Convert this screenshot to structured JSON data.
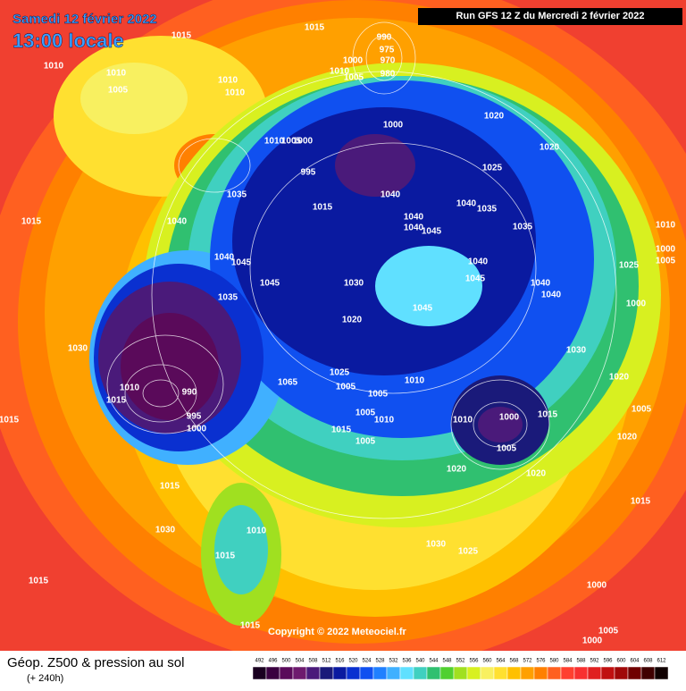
{
  "header": {
    "date": "Samedi 12 février 2022",
    "time": "13:00 locale",
    "run": "Run GFS 12 Z du Mercredi 2 février 2022"
  },
  "footer": {
    "title": "Géop. Z500 & pression au sol",
    "subtitle": "(+ 240h)",
    "copyright": "Copyright © 2022 Meteociel.fr"
  },
  "scale": {
    "values": [
      492,
      496,
      500,
      504,
      508,
      512,
      516,
      520,
      524,
      528,
      532,
      536,
      540,
      544,
      548,
      552,
      556,
      560,
      564,
      568,
      572,
      576,
      580,
      584,
      588,
      592,
      596,
      600,
      604,
      608,
      612
    ],
    "colors": [
      "#1a0020",
      "#3a0040",
      "#5a0a5a",
      "#6e1a6e",
      "#4a1a7a",
      "#1a1a7a",
      "#0a1aa0",
      "#0a30d0",
      "#1050f0",
      "#2080ff",
      "#40b0ff",
      "#60e0ff",
      "#40d0c0",
      "#30c070",
      "#50d030",
      "#a0e020",
      "#d8f020",
      "#f8f060",
      "#ffe030",
      "#ffc000",
      "#ffa000",
      "#ff8000",
      "#ff6020",
      "#ff4030",
      "#f83030",
      "#e02020",
      "#c01010",
      "#a00808",
      "#700000",
      "#400000",
      "#100000"
    ]
  },
  "isobar_labels": [
    1015,
    1015,
    990,
    975,
    970,
    1000,
    1010,
    1005,
    980,
    1010,
    1010,
    1005,
    1010,
    1010,
    1000,
    1020,
    1020,
    1010,
    1005,
    1000,
    995,
    1025,
    1035,
    1040,
    1015,
    1040,
    1035,
    1015,
    1040,
    1040,
    1040,
    1045,
    1035,
    1010,
    1000,
    1040,
    1045,
    1040,
    1025,
    1005,
    1045,
    1030,
    1045,
    1040,
    1040,
    1035,
    1000,
    1020,
    1045,
    1030,
    1030,
    1025,
    1065,
    1010,
    1020,
    1005,
    1005,
    1010,
    990,
    1015,
    1005,
    1015,
    995,
    1005,
    1010,
    1010,
    1000,
    1015,
    1000,
    1015,
    1005,
    1005,
    1020,
    1020,
    1020,
    1015,
    1030,
    1010,
    1015,
    1030,
    1025,
    1015,
    1015,
    1000,
    1005,
    1000,
    1015
  ]
}
